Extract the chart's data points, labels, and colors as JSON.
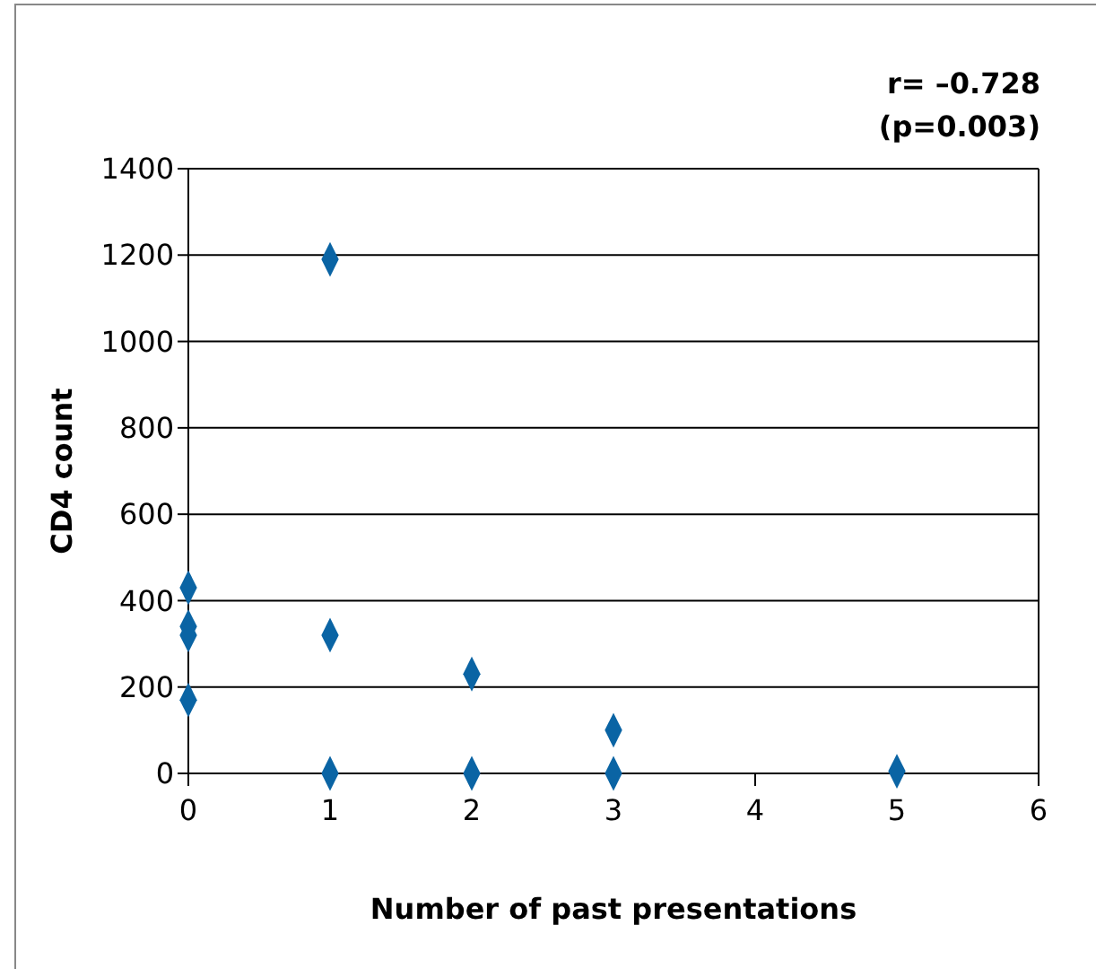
{
  "chart_data": {
    "type": "scatter",
    "xlabel": "Number of past presentations",
    "ylabel": "CD4 count",
    "annotations": [
      "r= –0.728",
      "(p=0.003)"
    ],
    "x": [
      0,
      0,
      0,
      0,
      1,
      1,
      1,
      2,
      2,
      3,
      3,
      5
    ],
    "series": [
      {
        "color": "#0a64a4",
        "values": [
          430,
          340,
          320,
          170,
          1190,
          320,
          0,
          230,
          0,
          100,
          0,
          5
        ]
      }
    ],
    "xlim": [
      0,
      6
    ],
    "xticks": [
      0,
      1,
      2,
      3,
      4,
      5,
      6
    ],
    "ylim": [
      0,
      1400
    ],
    "yticks": [
      0,
      200,
      400,
      600,
      800,
      1000,
      1200,
      1400
    ],
    "grid": "y",
    "marker": "diamond"
  }
}
